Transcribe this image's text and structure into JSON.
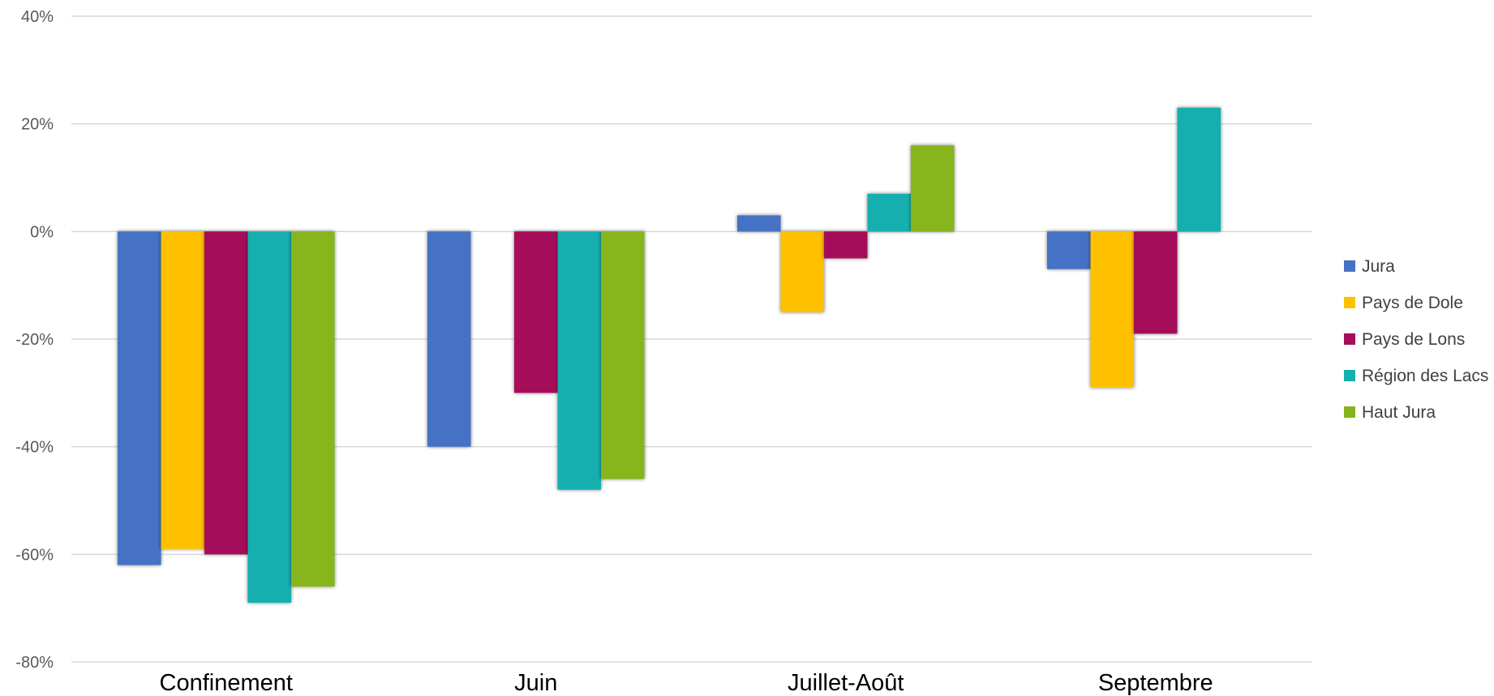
{
  "chart_data": {
    "type": "bar",
    "categories": [
      "Confinement",
      "Juin",
      "Juillet-Août",
      "Septembre"
    ],
    "series": [
      {
        "name": "Jura",
        "color": "#4472C4",
        "values": [
          -62,
          -40,
          3,
          -7
        ]
      },
      {
        "name": "Pays de Dole",
        "color": "#FFC000",
        "values": [
          -59,
          null,
          -15,
          -29
        ]
      },
      {
        "name": "Pays de Lons",
        "color": "#A50F5A",
        "values": [
          -60,
          -30,
          -5,
          -19
        ]
      },
      {
        "name": "Région des Lacs",
        "color": "#14AFAF",
        "values": [
          -69,
          -48,
          7,
          23
        ]
      },
      {
        "name": "Haut Jura",
        "color": "#86B51A",
        "values": [
          -66,
          -46,
          16,
          null
        ]
      }
    ],
    "ylim": [
      -80,
      40
    ],
    "yticks": [
      40,
      20,
      0,
      -20,
      -40,
      -60,
      -80
    ],
    "ytick_labels": [
      "40%",
      "20%",
      "0%",
      "-20%",
      "-40%",
      "-60%",
      "-80%"
    ],
    "grid": true,
    "legend_position": "right"
  }
}
